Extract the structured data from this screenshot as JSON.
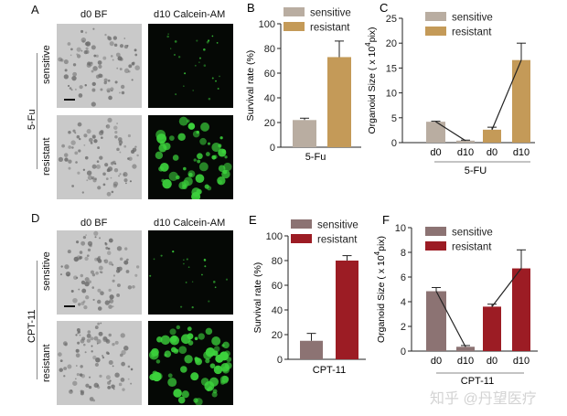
{
  "panels": {
    "A": {
      "label": "A",
      "col1": "d0 BF",
      "col2": "d10 Calcein-AM",
      "drug": "5-Fu",
      "row1": "sensitive",
      "row2": "resistant"
    },
    "D": {
      "label": "D",
      "col1": "d0 BF",
      "col2": "d10 Calcein-AM",
      "drug": "CPT-11",
      "row1": "sensitive",
      "row2": "resistant"
    }
  },
  "colors": {
    "sens_5fu": "#b9ada1",
    "res_5fu": "#c49a58",
    "sens_cpt": "#8c7373",
    "res_cpt": "#9c1c24",
    "green": "#3cd23c"
  },
  "watermark": "知乎 @丹望医疗",
  "chart_data": [
    {
      "id": "B",
      "panel_label": "B",
      "type": "bar",
      "ylabel": "Survival rate (%)",
      "xlabel": "5-Fu",
      "ylim": [
        0,
        100
      ],
      "yticks": [
        0,
        20,
        40,
        60,
        80,
        100
      ],
      "legend": [
        "sensitive",
        "resistant"
      ],
      "legend_placement": "top-left",
      "series": [
        {
          "name": "sensitive",
          "value": 22,
          "error": 1.5,
          "color": "#b9ada1"
        },
        {
          "name": "resistant",
          "value": 73,
          "error": 13,
          "color": "#c49a58"
        }
      ]
    },
    {
      "id": "C",
      "panel_label": "C",
      "type": "bar",
      "ylabel_main": "Organoid Size ( x 10",
      "ylabel_sup": "4",
      "ylabel_end": "pix)",
      "xlabel": "5-FU",
      "ylim": [
        0,
        25
      ],
      "yticks": [
        0,
        5,
        10,
        15,
        20,
        25
      ],
      "categories": [
        "d0",
        "d10",
        "d0",
        "d10"
      ],
      "legend": [
        "sensitive",
        "resistant"
      ],
      "legend_placement": "top-left",
      "values": [
        4.2,
        0.4,
        2.6,
        16.6
      ],
      "errors": [
        0.1,
        0.1,
        0.5,
        3.4
      ],
      "groups": [
        "sensitive",
        "sensitive",
        "resistant",
        "resistant"
      ],
      "bar_colors": [
        "#b9ada1",
        "#b9ada1",
        "#c49a58",
        "#c49a58"
      ]
    },
    {
      "id": "E",
      "panel_label": "E",
      "type": "bar",
      "ylabel": "Survival rate (%)",
      "xlabel": "CPT-11",
      "ylim": [
        0,
        100
      ],
      "yticks": [
        0,
        20,
        40,
        60,
        80,
        100
      ],
      "legend": [
        "sensitive",
        "resistant"
      ],
      "legend_placement": "top-left",
      "series": [
        {
          "name": "sensitive",
          "value": 15,
          "error": 6,
          "color": "#8c7373"
        },
        {
          "name": "resistant",
          "value": 80,
          "error": 4,
          "color": "#9c1c24"
        }
      ]
    },
    {
      "id": "F",
      "panel_label": "F",
      "type": "bar",
      "ylabel_main": "Organoid Size ( x 10",
      "ylabel_sup": "4",
      "ylabel_end": "pix)",
      "xlabel": "CPT-11",
      "ylim": [
        0,
        10
      ],
      "yticks": [
        0,
        2,
        4,
        6,
        8,
        10
      ],
      "categories": [
        "d0",
        "d10",
        "d0",
        "d10"
      ],
      "legend": [
        "sensitive",
        "resistant"
      ],
      "legend_placement": "top-left",
      "values": [
        4.85,
        0.35,
        3.6,
        6.7
      ],
      "errors": [
        0.3,
        0.1,
        0.2,
        1.5
      ],
      "groups": [
        "sensitive",
        "sensitive",
        "resistant",
        "resistant"
      ],
      "bar_colors": [
        "#8c7373",
        "#8c7373",
        "#9c1c24",
        "#9c1c24"
      ]
    }
  ]
}
